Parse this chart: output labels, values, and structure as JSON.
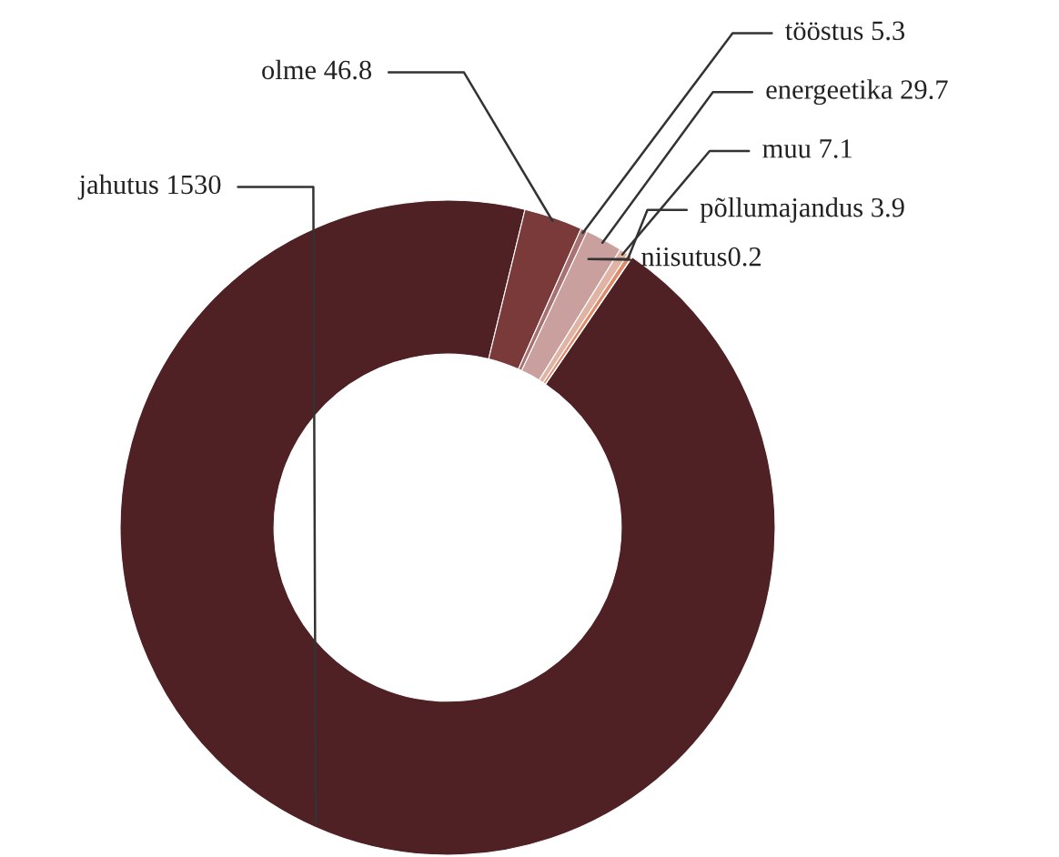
{
  "chart_data": {
    "type": "donut",
    "categories": [
      "jahutus 1530",
      "olme 46.8",
      "tööstus 5.3",
      "energeetika 29.7",
      "muu 7.1",
      "põllumajandus 3.9",
      "niisutus0.2"
    ],
    "values": [
      1530,
      46.8,
      5.3,
      29.7,
      7.1,
      3.9,
      0.2
    ],
    "colors": [
      "#4f2024",
      "#7a3a3a",
      "#a87272",
      "#c9a09e",
      "#e0b4a4",
      "#e08a6a",
      "#f0b090"
    ]
  }
}
